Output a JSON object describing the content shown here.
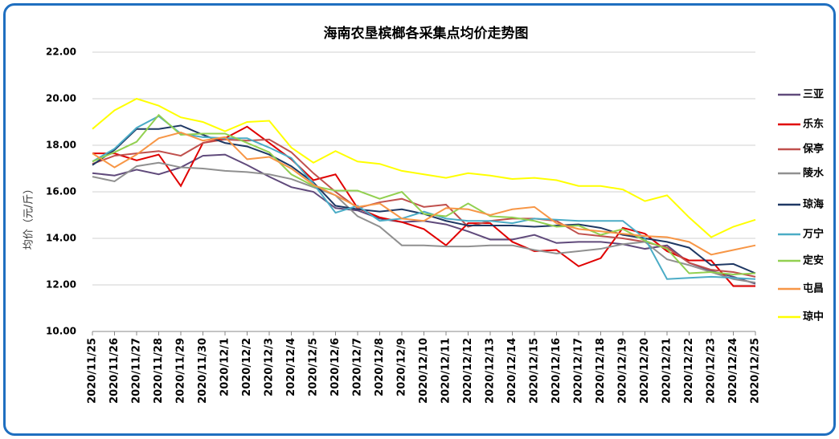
{
  "chart_data": {
    "type": "line",
    "title": "海南农垦槟榔各采集点均价走势图",
    "y_label": "均价（元/斤）",
    "categories": [
      "2020/11/25",
      "2020/11/26",
      "2020/11/27",
      "2020/11/28",
      "2020/11/29",
      "2020/11/30",
      "2020/12/1",
      "2020/12/2",
      "2020/12/3",
      "2020/12/4",
      "2020/12/5",
      "2020/12/6",
      "2020/12/7",
      "2020/12/8",
      "2020/12/9",
      "2020/12/10",
      "2020/12/11",
      "2020/12/12",
      "2020/12/13",
      "2020/12/14",
      "2020/12/15",
      "2020/12/16",
      "2020/12/17",
      "2020/12/18",
      "2020/12/19",
      "2020/12/20",
      "2020/12/21",
      "2020/12/22",
      "2020/12/23",
      "2020/12/24",
      "2020/12/25"
    ],
    "ylim": [
      10,
      22
    ],
    "yticks": [
      {
        "value": 10,
        "label": "10.00"
      },
      {
        "value": 12,
        "label": "12.00"
      },
      {
        "value": 14,
        "label": "14.00"
      },
      {
        "value": 16,
        "label": "16.00"
      },
      {
        "value": 18,
        "label": "18.00"
      },
      {
        "value": 20,
        "label": "20.00"
      },
      {
        "value": 22,
        "label": "22.00"
      }
    ],
    "grid": true,
    "legend": "right",
    "series": [
      {
        "name": "三亚",
        "color": "#604a7b",
        "values": [
          16.8,
          16.7,
          16.95,
          16.75,
          17.05,
          17.55,
          17.6,
          17.15,
          16.65,
          16.2,
          16.0,
          15.3,
          15.2,
          14.85,
          14.7,
          14.75,
          14.6,
          14.3,
          13.95,
          13.95,
          14.15,
          13.8,
          13.85,
          13.85,
          13.75,
          13.55,
          13.7,
          12.95,
          12.6,
          12.35,
          12.05
        ]
      },
      {
        "name": "乐东",
        "color": "#e00000",
        "values": [
          17.65,
          17.65,
          17.35,
          17.6,
          16.25,
          18.1,
          18.3,
          18.8,
          18.1,
          17.4,
          16.5,
          16.75,
          15.3,
          14.9,
          14.7,
          14.4,
          13.7,
          14.65,
          14.65,
          13.85,
          13.45,
          13.5,
          12.8,
          13.15,
          14.45,
          14.2,
          13.45,
          13.05,
          13.05,
          11.95,
          11.95
        ]
      },
      {
        "name": "保亭",
        "color": "#c0504d",
        "values": [
          17.2,
          17.55,
          17.65,
          17.75,
          17.55,
          18.1,
          18.25,
          18.2,
          18.25,
          17.7,
          16.8,
          16.0,
          15.3,
          15.55,
          15.7,
          15.35,
          15.45,
          14.5,
          14.75,
          14.85,
          14.85,
          14.75,
          14.2,
          14.1,
          14.0,
          13.85,
          13.6,
          12.95,
          12.65,
          12.55,
          12.35
        ]
      },
      {
        "name": "陵水",
        "color": "#909090",
        "values": [
          16.65,
          16.45,
          17.1,
          17.25,
          17.05,
          17.0,
          16.9,
          16.85,
          16.75,
          16.55,
          16.2,
          15.85,
          14.95,
          14.5,
          13.7,
          13.7,
          13.65,
          13.65,
          13.7,
          13.7,
          13.5,
          13.35,
          13.45,
          13.55,
          13.75,
          13.85,
          13.1,
          12.85,
          12.55,
          12.25,
          12.1
        ]
      },
      {
        "name": "琼海",
        "color": "#1f3864",
        "values": [
          17.15,
          17.8,
          18.7,
          18.7,
          18.85,
          18.45,
          18.1,
          17.95,
          17.6,
          17.1,
          16.4,
          15.4,
          15.25,
          15.15,
          15.25,
          15.05,
          14.75,
          14.55,
          14.55,
          14.55,
          14.5,
          14.55,
          14.6,
          14.45,
          14.15,
          14.0,
          13.85,
          13.6,
          12.85,
          12.9,
          12.5
        ]
      },
      {
        "name": "万宁",
        "color": "#4bacc6",
        "values": [
          17.3,
          17.85,
          18.75,
          19.25,
          18.5,
          18.35,
          18.3,
          18.3,
          17.9,
          17.45,
          16.35,
          15.1,
          15.4,
          14.75,
          14.85,
          15.15,
          14.85,
          14.75,
          14.75,
          14.65,
          14.85,
          14.8,
          14.75,
          14.75,
          14.75,
          14.0,
          12.25,
          12.3,
          12.35,
          12.3,
          12.25
        ]
      },
      {
        "name": "定安",
        "color": "#92d050",
        "values": [
          17.3,
          17.7,
          18.15,
          19.3,
          18.45,
          18.5,
          18.5,
          18.1,
          17.7,
          16.75,
          16.25,
          16.05,
          16.05,
          15.7,
          16.0,
          15.05,
          14.95,
          15.5,
          14.95,
          14.9,
          14.75,
          14.5,
          14.55,
          14.15,
          14.4,
          13.9,
          13.55,
          12.5,
          12.55,
          12.45,
          12.5
        ]
      },
      {
        "name": "屯昌",
        "color": "#f79646",
        "values": [
          17.65,
          17.05,
          17.6,
          18.3,
          18.55,
          18.2,
          18.35,
          17.4,
          17.5,
          17.0,
          16.3,
          15.85,
          15.35,
          15.5,
          14.85,
          14.75,
          15.3,
          15.25,
          15.0,
          15.25,
          15.35,
          14.65,
          14.4,
          14.3,
          14.2,
          14.1,
          14.05,
          13.85,
          13.3,
          13.5,
          13.7
        ]
      },
      {
        "name": "琼中",
        "color": "#ffff00",
        "values": [
          18.7,
          19.5,
          20.0,
          19.7,
          19.2,
          19.0,
          18.6,
          19.0,
          19.05,
          17.9,
          17.25,
          17.75,
          17.3,
          17.2,
          16.9,
          16.75,
          16.6,
          16.8,
          16.7,
          16.55,
          16.6,
          16.5,
          16.25,
          16.25,
          16.1,
          15.6,
          15.85,
          14.9,
          14.05,
          14.5,
          14.8
        ]
      }
    ]
  }
}
